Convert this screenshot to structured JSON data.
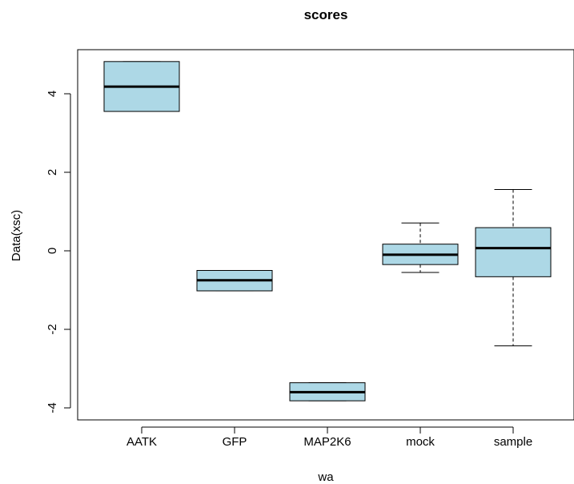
{
  "chart_data": {
    "type": "boxplot",
    "title": "scores",
    "xlabel": "wa",
    "ylabel": "Data(xsc)",
    "ylim": [
      -4.3,
      5.0
    ],
    "yticks": [
      -4,
      -2,
      0,
      2,
      4
    ],
    "ytick_labels": [
      "-4",
      "-2",
      "0",
      "2",
      "4"
    ],
    "box_fill": "#add8e6",
    "categories": [
      "AATK",
      "GFP",
      "MAP2K6",
      "mock",
      "sample"
    ],
    "boxes": [
      {
        "label": "AATK",
        "whisker_low": 3.55,
        "q1": 3.55,
        "median": 4.18,
        "q3": 4.82,
        "whisker_high": 4.82
      },
      {
        "label": "GFP",
        "whisker_low": -1.02,
        "q1": -1.02,
        "median": -0.75,
        "q3": -0.5,
        "whisker_high": -0.5
      },
      {
        "label": "MAP2K6",
        "whisker_low": -3.82,
        "q1": -3.82,
        "median": -3.6,
        "q3": -3.36,
        "whisker_high": -3.36
      },
      {
        "label": "mock",
        "whisker_low": -0.55,
        "q1": -0.35,
        "median": -0.1,
        "q3": 0.17,
        "whisker_high": 0.71
      },
      {
        "label": "sample",
        "whisker_low": -2.42,
        "q1": -0.66,
        "median": 0.07,
        "q3": 0.59,
        "whisker_high": 1.56
      }
    ]
  }
}
